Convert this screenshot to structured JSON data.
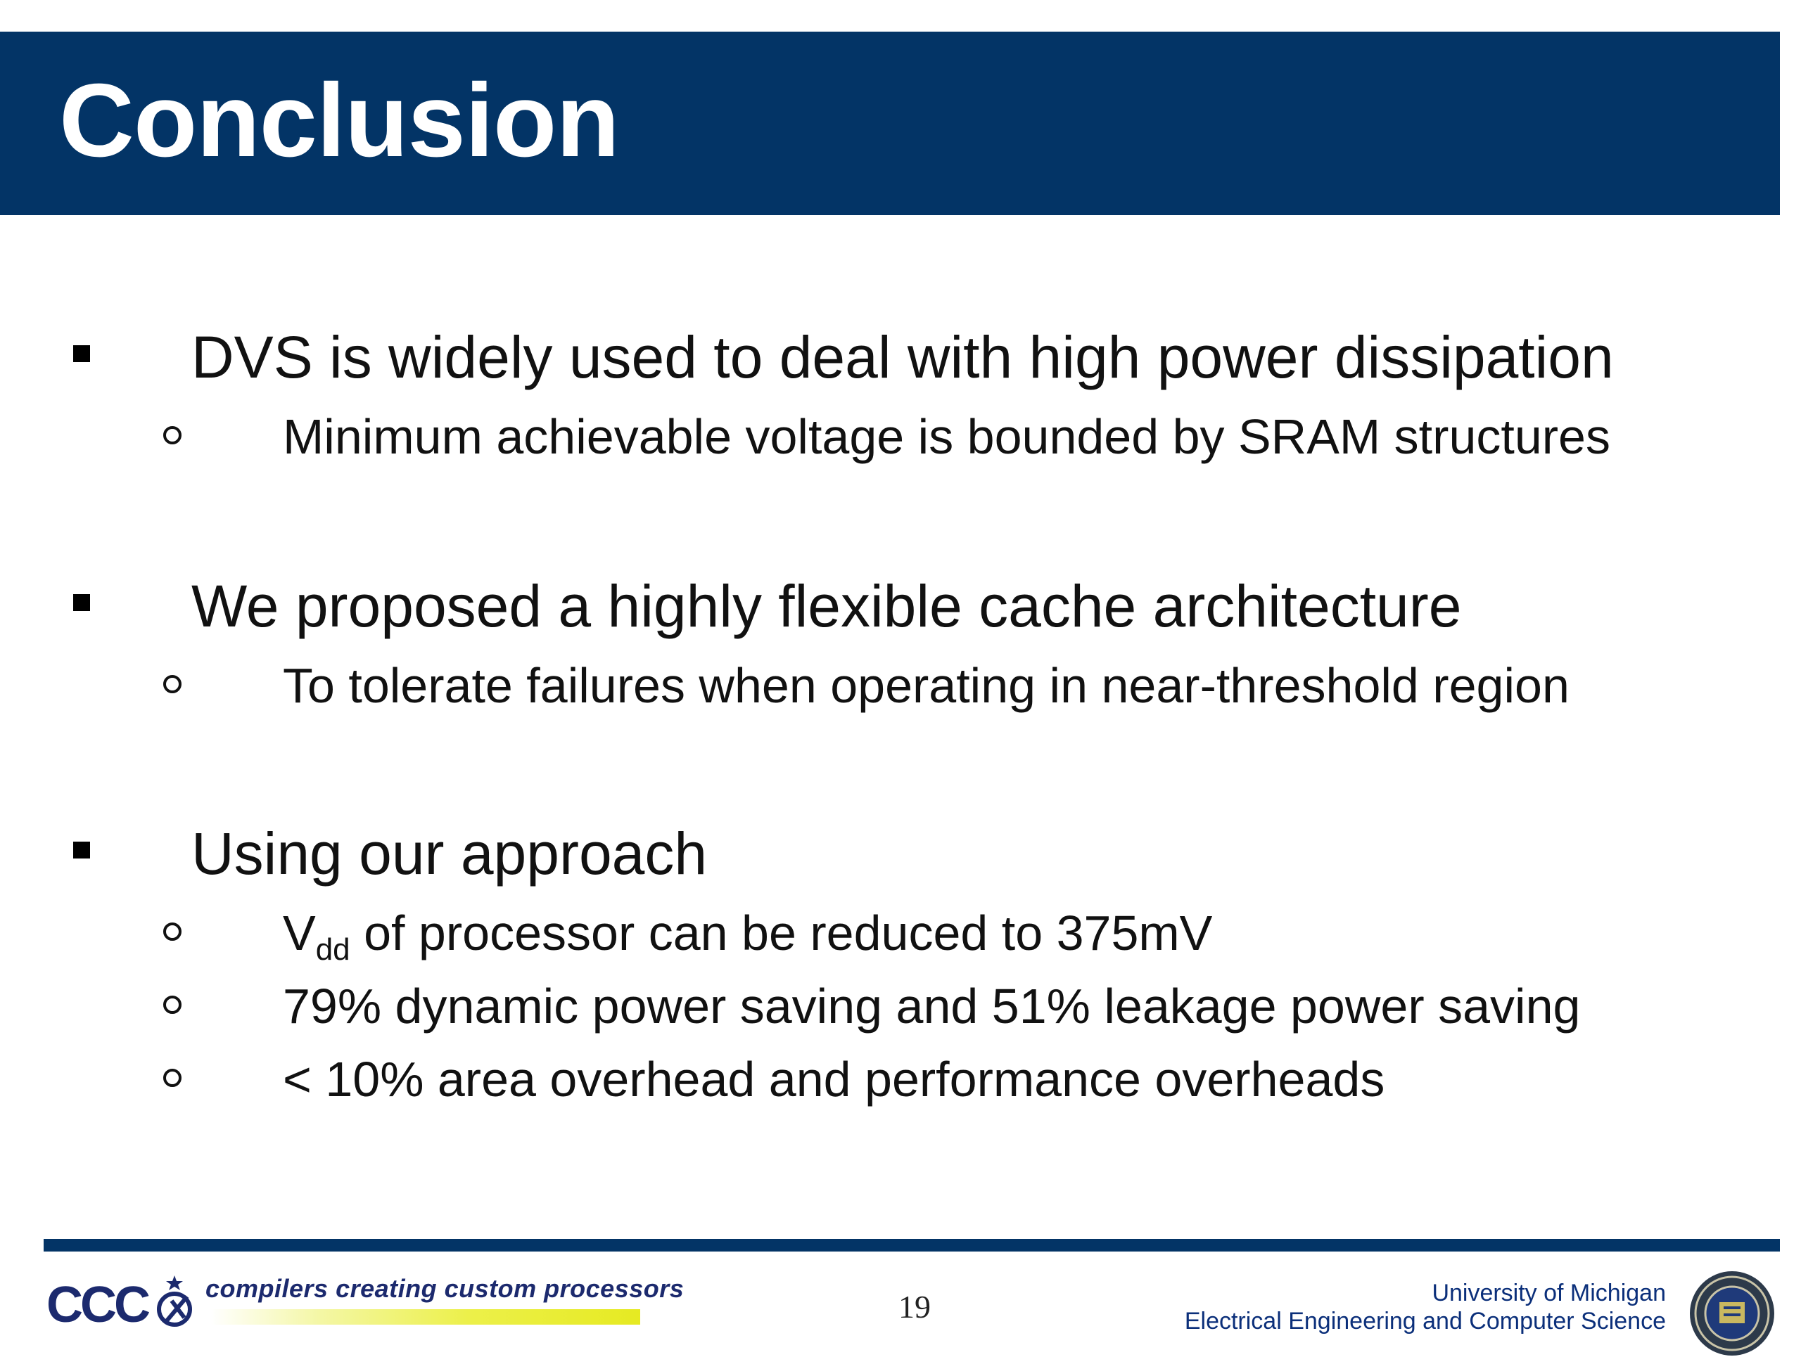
{
  "slide": {
    "title": "Conclusion",
    "bullets": [
      {
        "text": "DVS is widely used to deal with high power dissipation",
        "sub": [
          "Minimum achievable voltage is bounded by SRAM structures"
        ]
      },
      {
        "text": "We proposed a highly flexible cache architecture",
        "sub": [
          "To tolerate failures when operating in near-threshold region"
        ]
      },
      {
        "text": "Using our approach",
        "sub_vdd": {
          "base": "V",
          "subscript": "dd",
          "rest": " of processor can be reduced to 375mV"
        },
        "sub": [
          "79% dynamic power saving and 51% leakage power saving",
          "< 10% area overhead and performance overheads"
        ]
      }
    ]
  },
  "footer": {
    "logo_text": "CCC",
    "tagline": "compilers creating custom processors",
    "page_number": "19",
    "university": "University of Michigan",
    "department": "Electrical Engineering and Computer Science"
  },
  "colors": {
    "title_bar": "#033466",
    "footer_rule": "#033466",
    "tagline_highlight": "#e6ea22",
    "university_text": "#0b2f7a"
  }
}
